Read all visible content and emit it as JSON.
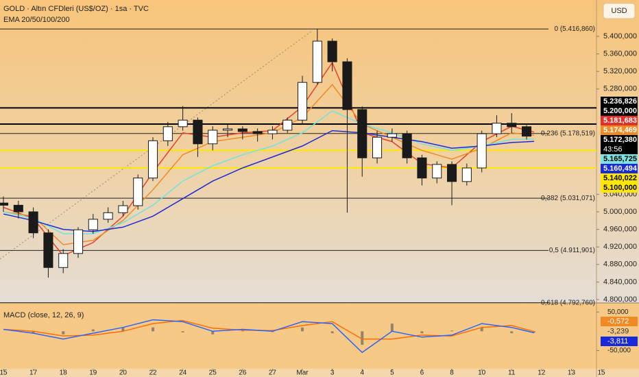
{
  "chart_data": {
    "type": "candlestick",
    "title": "GOLD · Altın CFDleri (US$/OZ) · 1sa · TVC",
    "subtitle": "EMA 20/50/100/200",
    "currency": "USD",
    "xlim": [
      -0.115,
      21.26
    ],
    "xticks": [
      {
        "value": 0,
        "label": "15"
      },
      {
        "value": 1,
        "label": "17"
      },
      {
        "value": 2,
        "label": "18"
      },
      {
        "value": 3,
        "label": "19"
      },
      {
        "value": 4,
        "label": "20"
      },
      {
        "value": 5,
        "label": "22"
      },
      {
        "value": 6,
        "label": "24"
      },
      {
        "value": 7,
        "label": "25"
      },
      {
        "value": 8,
        "label": "26"
      },
      {
        "value": 9,
        "label": "27"
      },
      {
        "value": 10,
        "label": "Mar"
      },
      {
        "value": 11,
        "label": "3"
      },
      {
        "value": 12,
        "label": "4"
      },
      {
        "value": 13,
        "label": "5"
      },
      {
        "value": 14,
        "label": "6"
      },
      {
        "value": 15,
        "label": "8"
      },
      {
        "value": 16,
        "label": "10"
      },
      {
        "value": 17,
        "label": "11"
      },
      {
        "value": 18,
        "label": "12"
      },
      {
        "value": 19,
        "label": "13"
      },
      {
        "value": 20,
        "label": "15"
      }
    ],
    "ylim": [
      4792.2,
      5482.8
    ],
    "yticks": [
      {
        "value": 5400,
        "label": "5.400,000"
      },
      {
        "value": 5360,
        "label": "5.360,000"
      },
      {
        "value": 5320,
        "label": "5.320,000"
      },
      {
        "value": 5280,
        "label": "5.280,000"
      },
      {
        "value": 5040,
        "label": "5.040,000"
      },
      {
        "value": 5000,
        "label": "5.000,000"
      },
      {
        "value": 4960,
        "label": "4.960,000"
      },
      {
        "value": 4920,
        "label": "4.920,000"
      },
      {
        "value": 4880,
        "label": "4.880,000"
      },
      {
        "value": 4840,
        "label": "4.840,000"
      },
      {
        "value": 4800,
        "label": "4.800,000"
      }
    ],
    "candles": {
      "up_color": "#ffffff",
      "down_color": "#1a1a1a",
      "x": [
        0,
        0.5,
        1,
        1.5,
        2,
        2.5,
        3,
        3.5,
        4,
        4.5,
        5,
        5.5,
        6,
        6.5,
        7,
        7.5,
        8,
        8.5,
        9,
        9.5,
        10,
        10.5,
        11,
        11.5,
        12,
        12.5,
        13,
        13.5,
        14,
        14.5,
        15,
        15.5,
        16,
        16.5,
        17,
        17.5
      ],
      "open": [
        5020,
        5015,
        5000,
        4952,
        4873,
        4905,
        4959,
        4983,
        4998,
        5014,
        5077,
        5162,
        5194,
        5209,
        5155,
        5186,
        5189,
        5183,
        5178,
        5186,
        5209,
        5295,
        5389,
        5342,
        5233,
        5123,
        5170,
        5178,
        5123,
        5077,
        5108,
        5069,
        5100,
        5178,
        5202,
        5194
      ],
      "high": [
        5035,
        5025,
        5010,
        4960,
        4915,
        4965,
        4995,
        5010,
        5025,
        5085,
        5170,
        5205,
        5241,
        5215,
        5195,
        5200,
        5195,
        5190,
        5195,
        5215,
        5310,
        5417,
        5395,
        5350,
        5240,
        5185,
        5190,
        5185,
        5130,
        5115,
        5115,
        5110,
        5185,
        5220,
        5225,
        5198
      ],
      "low": [
        5000,
        4985,
        4940,
        4850,
        4860,
        4895,
        4950,
        4975,
        4990,
        5005,
        5070,
        5150,
        5185,
        5125,
        5140,
        5170,
        5165,
        5160,
        5165,
        5180,
        5200,
        5290,
        5320,
        4998,
        5080,
        5110,
        5160,
        5110,
        5060,
        5065,
        5015,
        5060,
        5090,
        5170,
        5180,
        5165
      ],
      "close": [
        5015,
        5000,
        4952,
        4873,
        4905,
        4959,
        4983,
        4998,
        5014,
        5077,
        5162,
        5194,
        5209,
        5155,
        5186,
        5189,
        5183,
        5178,
        5186,
        5209,
        5295,
        5389,
        5342,
        5233,
        5123,
        5170,
        5178,
        5123,
        5077,
        5108,
        5069,
        5100,
        5178,
        5202,
        5194,
        5172.38
      ]
    },
    "ema": [
      {
        "color": "#e8402a",
        "x": [
          0,
          1,
          2,
          3,
          4,
          5,
          6,
          7,
          8,
          9,
          10,
          11,
          12,
          13,
          14,
          15,
          16,
          17,
          17.75
        ],
        "values": [
          5010,
          4985,
          4900,
          4930,
          4990,
          5090,
          5180,
          5170,
          5180,
          5185,
          5240,
          5340,
          5180,
          5160,
          5110,
          5100,
          5160,
          5195,
          5181.683
        ]
      },
      {
        "color": "#f08a24",
        "x": [
          0,
          1,
          2,
          3,
          4,
          5,
          6,
          7,
          8,
          9,
          10,
          11,
          12,
          13,
          14,
          15,
          16,
          17,
          17.75
        ],
        "values": [
          5000,
          4990,
          4925,
          4935,
          4980,
          5050,
          5130,
          5160,
          5170,
          5180,
          5215,
          5290,
          5200,
          5170,
          5140,
          5120,
          5145,
          5180,
          5174.469
        ]
      },
      {
        "color": "#6fe3e0",
        "x": [
          0,
          1,
          2,
          3,
          4,
          5,
          6,
          7,
          8,
          9,
          10,
          11,
          12,
          13,
          14,
          15,
          16,
          17,
          17.75
        ],
        "values": [
          5000,
          4985,
          4950,
          4950,
          4975,
          5015,
          5070,
          5105,
          5130,
          5150,
          5180,
          5230,
          5200,
          5180,
          5155,
          5140,
          5150,
          5165,
          5165.725
        ]
      },
      {
        "color": "#1a2ad8",
        "x": [
          0,
          1,
          2,
          3,
          4,
          5,
          6,
          7,
          8,
          9,
          10,
          11,
          12,
          13,
          14,
          15,
          16,
          17,
          17.75
        ],
        "values": [
          4995,
          4980,
          4960,
          4955,
          4965,
          4990,
          5030,
          5070,
          5100,
          5125,
          5150,
          5185,
          5180,
          5170,
          5160,
          5145,
          5150,
          5158,
          5160.494
        ]
      }
    ],
    "hlines": [
      {
        "value": 5236.826,
        "color": "#000000"
      },
      {
        "value": 5200,
        "color": "#000000"
      },
      {
        "value": 5140.022,
        "color": "#ffe800"
      },
      {
        "value": 5100,
        "color": "#ffe800"
      }
    ],
    "fib": [
      {
        "value": 5416.86,
        "label": "0 (5.416,860)"
      },
      {
        "value": 5178.519,
        "label": "0,236 (5.178,519)"
      },
      {
        "value": 5031.071,
        "label": "0,382 (5.031,071)"
      },
      {
        "value": 4911.901,
        "label": "0,5 (4.911,901)"
      },
      {
        "value": 4792.76,
        "label": "0,618 (4.792,760)"
      }
    ],
    "price_tags": [
      {
        "value": 5236.826,
        "label": "5.236,826",
        "color": "#000000",
        "text_color": "#ffffff"
      },
      {
        "value": 5200,
        "label": "5.200,000",
        "color": "#000000",
        "text_color": "#ffffff"
      },
      {
        "value": 5181.683,
        "label": "5.181,683",
        "color": "#e0302a",
        "text_color": "#ffffff"
      },
      {
        "value": 5174.469,
        "label": "5.174,469",
        "color": "#f08a24",
        "text_color": "#ffffff"
      },
      {
        "value": 5172.38,
        "label": "5.172,380",
        "color": "#000000",
        "text_color": "#ffffff"
      },
      {
        "value": 5165.725,
        "label": "5.165,725",
        "color": "#7ee3e0",
        "text_color": "#000000"
      },
      {
        "value": 5160.494,
        "label": "5.160,494",
        "color": "#1a2ad8",
        "text_color": "#ffffff"
      },
      {
        "value": 5140.022,
        "label": "5.140,022",
        "color": "#ffe800",
        "text_color": "#000000"
      },
      {
        "value": 5100,
        "label": "5.100,000",
        "color": "#ffe800",
        "text_color": "#000000"
      }
    ],
    "countdown": "43:56",
    "macd": {
      "title": "MACD (close, 12, 26, 9)",
      "y2lim": [
        -95.5,
        68.2
      ],
      "y2ticks": [
        {
          "value": 50,
          "label": "50,000"
        },
        {
          "value": -50,
          "label": "-50,000"
        }
      ],
      "x": [
        0,
        1,
        2,
        3,
        4,
        5,
        6,
        7,
        8,
        9,
        10,
        11,
        12,
        13,
        14,
        15,
        16,
        17,
        17.75
      ],
      "macd": {
        "color": "#2962ff",
        "values": [
          5,
          -5,
          -20,
          -5,
          10,
          30,
          25,
          0,
          5,
          0,
          25,
          20,
          -55,
          0,
          -15,
          -10,
          20,
          10,
          -3.811
        ]
      },
      "signal": {
        "color": "#ff6d00",
        "values": [
          5,
          0,
          -12,
          -10,
          0,
          20,
          28,
          8,
          3,
          2,
          15,
          25,
          -20,
          -20,
          -10,
          -12,
          10,
          15,
          -0.572
        ]
      },
      "histogram": {
        "color": "#555555",
        "values": [
          0,
          -5,
          -8,
          5,
          10,
          10,
          -3,
          -8,
          2,
          -2,
          10,
          -5,
          -35,
          20,
          -5,
          2,
          10,
          -5,
          -3.239
        ]
      },
      "tags": [
        {
          "value": -0.572,
          "label": "-0,572",
          "color": "#f08a24",
          "text_color": "#ffffff"
        },
        {
          "value": -3.239,
          "label": "-3,239",
          "color": "none",
          "text_color": "#333333"
        },
        {
          "value": -3.811,
          "label": "-3,811",
          "color": "#1a2ad8",
          "text_color": "#ffffff"
        }
      ]
    }
  }
}
